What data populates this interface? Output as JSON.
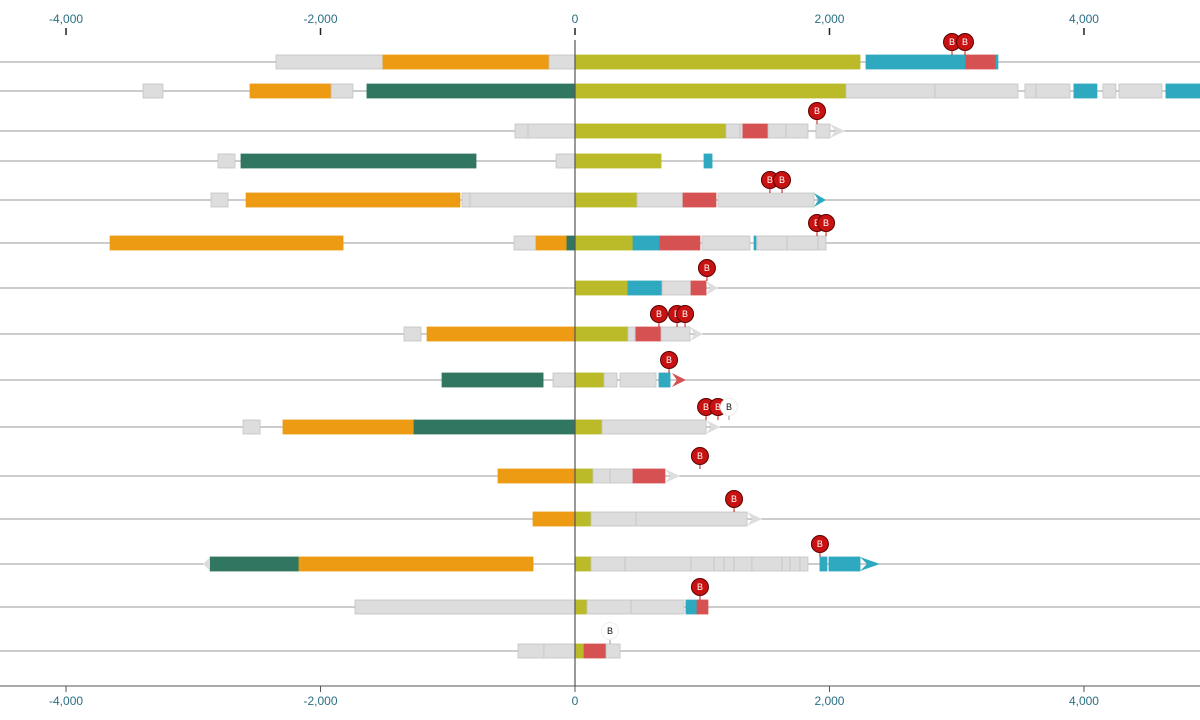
{
  "chart_data": {
    "type": "bar",
    "subtype": "segmented-tracks",
    "xlim": [
      -4519,
      4912
    ],
    "ticks": [
      -4000,
      -2000,
      0,
      2000,
      4000
    ],
    "tick_labels": [
      "-4,000",
      "-2,000",
      "0",
      "2,000",
      "4,000"
    ],
    "axes": [
      "top",
      "bottom"
    ],
    "grid": false,
    "colors": {
      "olive": "#bbbb29",
      "orange": "#ec9b12",
      "teal": "#317661",
      "cyan": "#2ea9bf",
      "red": "#d65252",
      "gray": "#dddddd",
      "marker": "#c81212"
    },
    "marker_label": "B",
    "rows": [
      {
        "segments": [
          [
            -2350,
            -1509,
            "gray"
          ],
          [
            -1509,
            -204,
            "orange"
          ],
          [
            -204,
            0,
            "gray"
          ],
          [
            0,
            2240,
            "olive"
          ],
          [
            2287,
            3073,
            "cyan"
          ],
          [
            3073,
            3308,
            "red"
          ],
          [
            3308,
            3324,
            "cyan"
          ]
        ],
        "markers": [
          [
            2963,
            true
          ],
          [
            3065,
            true
          ]
        ]
      },
      {
        "segments": [
          [
            -3395,
            -3238,
            "gray"
          ],
          [
            -2554,
            -1917,
            "orange"
          ],
          [
            -1917,
            -1745,
            "gray"
          ],
          [
            -1635,
            0,
            "teal"
          ],
          [
            0,
            2130,
            "olive"
          ],
          [
            2130,
            2829,
            "gray"
          ],
          [
            2829,
            3481,
            "gray"
          ],
          [
            3536,
            3623,
            "gray"
          ],
          [
            3623,
            3890,
            "gray"
          ],
          [
            3921,
            4102,
            "cyan"
          ],
          [
            4149,
            4251,
            "gray"
          ],
          [
            4275,
            4613,
            "gray"
          ],
          [
            4644,
            4950,
            "cyan"
          ]
        ],
        "markers": []
      },
      {
        "segments": [
          [
            -472,
            -369,
            "gray"
          ],
          [
            -369,
            0,
            "gray"
          ],
          [
            0,
            1187,
            "olive"
          ],
          [
            1187,
            1297,
            "gray"
          ],
          [
            1297,
            1320,
            "gray"
          ],
          [
            1320,
            1517,
            "red"
          ],
          [
            1517,
            1658,
            "gray"
          ],
          [
            1658,
            1831,
            "gray"
          ],
          [
            1894,
            2004,
            "gray"
          ]
        ],
        "arrow": [
          2004,
          2122,
          "gray"
        ],
        "markers": [
          [
            1902,
            true
          ]
        ]
      },
      {
        "segments": [
          [
            -2806,
            -2672,
            "gray"
          ],
          [
            -2625,
            -778,
            "teal"
          ],
          [
            -149,
            0,
            "gray"
          ],
          [
            0,
            676,
            "olive"
          ],
          [
            1014,
            1077,
            "cyan"
          ]
        ],
        "markers": []
      },
      {
        "segments": [
          [
            -2861,
            -2727,
            "gray"
          ],
          [
            -2585,
            -904,
            "orange"
          ],
          [
            -888,
            -825,
            "gray"
          ],
          [
            -825,
            0,
            "gray"
          ],
          [
            0,
            487,
            "olive"
          ],
          [
            487,
            849,
            "gray"
          ],
          [
            849,
            1108,
            "red"
          ],
          [
            1124,
            1878,
            "gray"
          ]
        ],
        "arrow": [
          1878,
          1973,
          "cyan"
        ],
        "markers": [
          [
            1532,
            true
          ],
          [
            1627,
            true
          ]
        ]
      },
      {
        "segments": [
          [
            -3654,
            -1823,
            "orange"
          ],
          [
            -479,
            -306,
            "gray"
          ],
          [
            -306,
            -63,
            "orange"
          ],
          [
            -63,
            0,
            "teal"
          ],
          [
            0,
            456,
            "olive"
          ],
          [
            456,
            668,
            "cyan"
          ],
          [
            668,
            982,
            "red"
          ],
          [
            998,
            1375,
            "gray"
          ],
          [
            1407,
            1422,
            "cyan"
          ],
          [
            1430,
            1666,
            "gray"
          ],
          [
            1666,
            1910,
            "gray"
          ],
          [
            1910,
            1973,
            "gray"
          ]
        ],
        "markers": [
          [
            1902,
            true
          ],
          [
            1973,
            true
          ]
        ]
      },
      {
        "segments": [
          [
            0,
            416,
            "olive"
          ],
          [
            416,
            684,
            "cyan"
          ],
          [
            684,
            912,
            "gray"
          ],
          [
            912,
            1030,
            "red"
          ]
        ],
        "arrow": [
          1030,
          1124,
          "gray"
        ],
        "markers": [
          [
            1037,
            true
          ]
        ]
      },
      {
        "segments": [
          [
            -1344,
            -1210,
            "gray"
          ],
          [
            -1163,
            0,
            "orange"
          ],
          [
            0,
            416,
            "olive"
          ],
          [
            416,
            472,
            "gray"
          ],
          [
            479,
            676,
            "red"
          ],
          [
            676,
            904,
            "gray"
          ]
        ],
        "arrow": [
          904,
          1006,
          "gray"
        ],
        "markers": [
          [
            660,
            true
          ],
          [
            802,
            true
          ],
          [
            865,
            true
          ]
        ]
      },
      {
        "segments": [
          [
            -1045,
            -251,
            "teal"
          ],
          [
            -173,
            0,
            "gray"
          ],
          [
            0,
            228,
            "olive"
          ],
          [
            228,
            330,
            "gray"
          ],
          [
            354,
            637,
            "gray"
          ],
          [
            660,
            747,
            "cyan"
          ]
        ],
        "arrow": [
          762,
          872,
          "red"
        ],
        "markers": [
          [
            739,
            true
          ]
        ]
      },
      {
        "segments": [
          [
            -2609,
            -2475,
            "gray"
          ],
          [
            -2295,
            -1265,
            "orange"
          ],
          [
            -1265,
            0,
            "teal"
          ],
          [
            0,
            212,
            "olive"
          ],
          [
            212,
            1030,
            "gray"
          ]
        ],
        "arrow": [
          1030,
          1140,
          "gray"
        ],
        "markers": [
          [
            1030,
            true
          ],
          [
            1124,
            true
          ],
          [
            1210,
            false
          ]
        ]
      },
      {
        "segments": [
          [
            -605,
            0,
            "orange"
          ],
          [
            0,
            141,
            "olive"
          ],
          [
            141,
            275,
            "gray"
          ],
          [
            275,
            456,
            "gray"
          ],
          [
            456,
            707,
            "red"
          ]
        ],
        "arrow": [
          707,
          825,
          "gray"
        ],
        "markers": [
          [
            982,
            true
          ]
        ]
      },
      {
        "segments": [
          [
            -330,
            0,
            "orange"
          ],
          [
            0,
            126,
            "olive"
          ],
          [
            126,
            479,
            "gray"
          ],
          [
            479,
            1352,
            "gray"
          ]
        ],
        "arrow": [
          1352,
          1470,
          "gray"
        ],
        "markers": [
          [
            1250,
            true
          ]
        ]
      },
      {
        "segments": [
          [
            -2869,
            -2169,
            "teal"
          ],
          [
            -2169,
            -330,
            "orange"
          ],
          [
            0,
            126,
            "olive"
          ],
          [
            126,
            393,
            "gray"
          ],
          [
            393,
            912,
            "gray"
          ],
          [
            912,
            1093,
            "gray"
          ],
          [
            1093,
            1171,
            "gray"
          ],
          [
            1171,
            1250,
            "gray"
          ],
          [
            1250,
            1391,
            "gray"
          ],
          [
            1391,
            1627,
            "gray"
          ],
          [
            1627,
            1690,
            "gray"
          ],
          [
            1690,
            1768,
            "gray"
          ],
          [
            1768,
            1831,
            "gray"
          ],
          [
            1925,
            1980,
            "cyan"
          ],
          [
            1996,
            2240,
            "cyan"
          ]
        ],
        "arrow": [
          2240,
          2397,
          "cyan"
        ],
        "left_arrow": [
          -2869,
          -2923,
          "gray"
        ],
        "markers": [
          [
            1925,
            true
          ]
        ]
      },
      {
        "segments": [
          [
            -1729,
            0,
            "gray"
          ],
          [
            0,
            94,
            "olive"
          ],
          [
            94,
            440,
            "gray"
          ],
          [
            440,
            857,
            "gray"
          ],
          [
            872,
            959,
            "cyan"
          ],
          [
            959,
            1045,
            "red"
          ]
        ],
        "markers": [
          [
            982,
            true
          ]
        ]
      },
      {
        "segments": [
          [
            -448,
            -244,
            "gray"
          ],
          [
            -244,
            0,
            "gray"
          ],
          [
            0,
            71,
            "olive"
          ],
          [
            71,
            244,
            "red"
          ],
          [
            244,
            354,
            "gray"
          ]
        ],
        "markers": [
          [
            275,
            false
          ]
        ]
      }
    ]
  }
}
